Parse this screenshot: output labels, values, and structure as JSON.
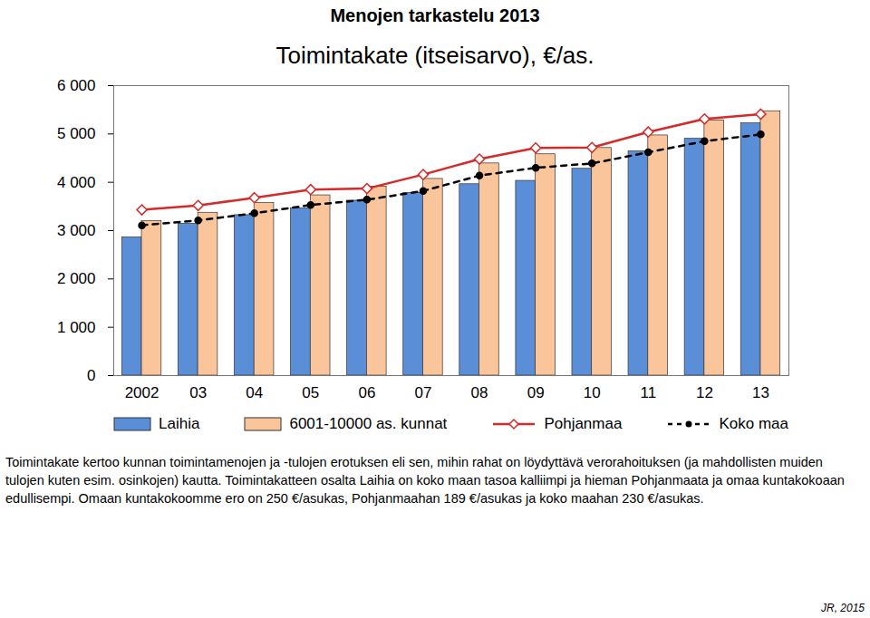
{
  "chart_data": {
    "type": "bar",
    "page_title": "Menojen tarkastelu 2013",
    "title": "Toimintakate (itseisarvo), €/as.",
    "categories": [
      "2002",
      "03",
      "04",
      "05",
      "06",
      "07",
      "08",
      "09",
      "10",
      "11",
      "12",
      "13"
    ],
    "series": [
      {
        "name": "Laihia",
        "type": "bar",
        "color": "#5a8fd8",
        "values": [
          2860,
          3140,
          3320,
          3460,
          3620,
          3780,
          3960,
          4030,
          4280,
          4640,
          4900,
          5220
        ]
      },
      {
        "name": "6001-10000 as. kunnat",
        "type": "bar",
        "color": "#fac59b",
        "values": [
          3200,
          3370,
          3570,
          3730,
          3910,
          4070,
          4390,
          4580,
          4710,
          4970,
          5280,
          5470
        ]
      },
      {
        "name": "Pohjanmaa",
        "type": "line",
        "color": "#d42a2a",
        "marker": "diamond",
        "line_style": "solid",
        "values": [
          3430,
          3520,
          3680,
          3850,
          3870,
          4160,
          4480,
          4710,
          4720,
          5040,
          5310,
          5410
        ]
      },
      {
        "name": "Koko maa",
        "type": "line",
        "color": "#000000",
        "marker": "circle",
        "line_style": "dashed",
        "values": [
          3110,
          3210,
          3360,
          3530,
          3640,
          3820,
          4140,
          4300,
          4390,
          4620,
          4850,
          4990
        ]
      }
    ],
    "ylim": [
      0,
      6000
    ],
    "yticks": [
      0,
      {
        "value": 1000,
        "label": "1 000"
      },
      {
        "value": 2000,
        "label": "2 000"
      },
      {
        "value": 3000,
        "label": "3 000"
      },
      {
        "value": 4000,
        "label": "4 000"
      },
      {
        "value": 5000,
        "label": "5 000"
      },
      {
        "value": 6000,
        "label": "6 000"
      }
    ],
    "grid": false,
    "legend": "bottom",
    "caption": "Toimintakate kertoo kunnan toimintamenojen ja -tulojen erotuksen eli sen, mihin rahat on löydyttävä verorahoituksen (ja mahdollisten muiden tulojen kuten esim. osinkojen) kautta. Toimintakatteen osalta Laihia on koko maan tasoa kalliimpi ja hieman Pohjanmaata ja omaa kuntakokoaan edullisempi. Omaan kuntakokoomme ero on 250 €/asukas, Pohjanmaahan 189 €/asukas ja koko maahan 230 €/asukas.",
    "footer": "JR, 2015"
  }
}
